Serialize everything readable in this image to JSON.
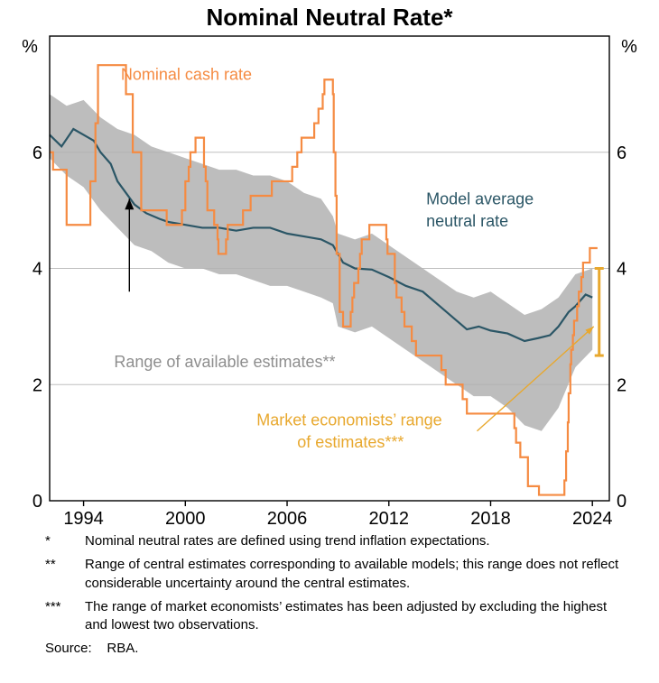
{
  "chart": {
    "type": "line-with-band",
    "title": "Nominal Neutral Rate*",
    "y_unit": "%",
    "xlim": [
      1992,
      2025
    ],
    "ylim": [
      0,
      8
    ],
    "xticks": [
      1994,
      2000,
      2006,
      2012,
      2018,
      2024
    ],
    "ygrid": [
      2,
      4,
      6
    ],
    "yticks_labels": [
      "0",
      "2",
      "4",
      "6"
    ],
    "colors": {
      "background": "#ffffff",
      "axis": "#000000",
      "grid": "#bfbfbf",
      "band": "#b1b1b1",
      "cash_rate": "#f58b42",
      "model_avg": "#2b5666",
      "arrow_black": "#000000",
      "market_range": "#e8a82e",
      "text_grey": "#8e8e8e"
    },
    "line_width_cash": 2.2,
    "line_width_model": 2.2,
    "tick_fontsize": 20,
    "title_fontsize": 26,
    "label_fontsize": 18,
    "band_upper": [
      [
        1992.0,
        7.0
      ],
      [
        1993.0,
        6.8
      ],
      [
        1994.0,
        6.9
      ],
      [
        1995.0,
        6.6
      ],
      [
        1996.0,
        6.4
      ],
      [
        1997.0,
        6.3
      ],
      [
        1998.0,
        6.1
      ],
      [
        1999.0,
        6.0
      ],
      [
        2000.0,
        5.9
      ],
      [
        2001.0,
        5.8
      ],
      [
        2002.0,
        5.7
      ],
      [
        2003.0,
        5.7
      ],
      [
        2004.0,
        5.6
      ],
      [
        2005.0,
        5.6
      ],
      [
        2006.0,
        5.5
      ],
      [
        2007.0,
        5.3
      ],
      [
        2008.0,
        5.2
      ],
      [
        2008.7,
        4.9
      ],
      [
        2009.0,
        4.6
      ],
      [
        2010.0,
        4.5
      ],
      [
        2011.0,
        4.6
      ],
      [
        2012.0,
        4.4
      ],
      [
        2013.0,
        4.2
      ],
      [
        2014.0,
        4.0
      ],
      [
        2015.0,
        3.8
      ],
      [
        2016.0,
        3.6
      ],
      [
        2017.0,
        3.5
      ],
      [
        2018.0,
        3.6
      ],
      [
        2019.0,
        3.4
      ],
      [
        2020.0,
        3.2
      ],
      [
        2021.0,
        3.3
      ],
      [
        2022.0,
        3.5
      ],
      [
        2023.0,
        3.9
      ],
      [
        2024.0,
        4.0
      ]
    ],
    "band_lower": [
      [
        1992.0,
        5.9
      ],
      [
        1993.0,
        5.6
      ],
      [
        1994.0,
        5.4
      ],
      [
        1995.0,
        5.0
      ],
      [
        1996.0,
        4.7
      ],
      [
        1997.0,
        4.4
      ],
      [
        1998.0,
        4.3
      ],
      [
        1999.0,
        4.1
      ],
      [
        2000.0,
        4.0
      ],
      [
        2001.0,
        4.0
      ],
      [
        2002.0,
        3.9
      ],
      [
        2003.0,
        3.9
      ],
      [
        2004.0,
        3.8
      ],
      [
        2005.0,
        3.7
      ],
      [
        2006.0,
        3.7
      ],
      [
        2007.0,
        3.6
      ],
      [
        2008.0,
        3.5
      ],
      [
        2008.7,
        3.4
      ],
      [
        2009.0,
        3.0
      ],
      [
        2010.0,
        2.9
      ],
      [
        2011.0,
        3.0
      ],
      [
        2012.0,
        2.8
      ],
      [
        2013.0,
        2.6
      ],
      [
        2014.0,
        2.4
      ],
      [
        2015.0,
        2.2
      ],
      [
        2016.0,
        2.0
      ],
      [
        2017.0,
        1.8
      ],
      [
        2018.0,
        1.8
      ],
      [
        2019.0,
        1.6
      ],
      [
        2020.0,
        1.3
      ],
      [
        2021.0,
        1.2
      ],
      [
        2022.0,
        1.6
      ],
      [
        2023.0,
        2.3
      ],
      [
        2024.0,
        2.6
      ]
    ],
    "model_avg": [
      [
        1992.0,
        6.3
      ],
      [
        1992.7,
        6.1
      ],
      [
        1993.4,
        6.4
      ],
      [
        1994.0,
        6.3
      ],
      [
        1994.6,
        6.2
      ],
      [
        1995.0,
        6.0
      ],
      [
        1995.6,
        5.8
      ],
      [
        1996.0,
        5.5
      ],
      [
        1996.5,
        5.3
      ],
      [
        1997.0,
        5.1
      ],
      [
        1997.7,
        4.95
      ],
      [
        1998.5,
        4.85
      ],
      [
        1999.0,
        4.8
      ],
      [
        2000.0,
        4.75
      ],
      [
        2001.0,
        4.7
      ],
      [
        2002.0,
        4.7
      ],
      [
        2003.0,
        4.65
      ],
      [
        2004.0,
        4.7
      ],
      [
        2005.0,
        4.7
      ],
      [
        2006.0,
        4.6
      ],
      [
        2007.0,
        4.55
      ],
      [
        2008.0,
        4.5
      ],
      [
        2008.7,
        4.4
      ],
      [
        2009.3,
        4.1
      ],
      [
        2010.0,
        4.0
      ],
      [
        2011.0,
        3.98
      ],
      [
        2012.0,
        3.85
      ],
      [
        2013.0,
        3.7
      ],
      [
        2014.0,
        3.6
      ],
      [
        2015.0,
        3.35
      ],
      [
        2016.0,
        3.1
      ],
      [
        2016.6,
        2.95
      ],
      [
        2017.3,
        3.0
      ],
      [
        2018.0,
        2.93
      ],
      [
        2019.0,
        2.88
      ],
      [
        2020.0,
        2.75
      ],
      [
        2020.8,
        2.8
      ],
      [
        2021.5,
        2.85
      ],
      [
        2022.0,
        3.0
      ],
      [
        2022.6,
        3.25
      ],
      [
        2023.0,
        3.35
      ],
      [
        2023.6,
        3.55
      ],
      [
        2024.0,
        3.5
      ]
    ],
    "cash_rate": [
      [
        1992.0,
        6.0
      ],
      [
        1992.2,
        6.0
      ],
      [
        1992.2,
        5.7
      ],
      [
        1993.0,
        5.7
      ],
      [
        1993.0,
        4.75
      ],
      [
        1993.8,
        4.75
      ],
      [
        1993.8,
        4.75
      ],
      [
        1994.4,
        4.75
      ],
      [
        1994.4,
        5.5
      ],
      [
        1994.7,
        5.5
      ],
      [
        1994.7,
        6.5
      ],
      [
        1994.85,
        6.5
      ],
      [
        1994.85,
        7.5
      ],
      [
        1996.5,
        7.5
      ],
      [
        1996.5,
        7.0
      ],
      [
        1996.9,
        7.0
      ],
      [
        1996.9,
        6.0
      ],
      [
        1997.4,
        6.0
      ],
      [
        1997.4,
        5.0
      ],
      [
        1998.9,
        5.0
      ],
      [
        1998.9,
        4.75
      ],
      [
        1999.8,
        4.75
      ],
      [
        1999.8,
        5.0
      ],
      [
        2000.0,
        5.0
      ],
      [
        2000.0,
        5.5
      ],
      [
        2000.2,
        5.5
      ],
      [
        2000.2,
        5.75
      ],
      [
        2000.3,
        5.75
      ],
      [
        2000.3,
        6.0
      ],
      [
        2000.6,
        6.0
      ],
      [
        2000.6,
        6.25
      ],
      [
        2001.1,
        6.25
      ],
      [
        2001.1,
        5.75
      ],
      [
        2001.2,
        5.75
      ],
      [
        2001.2,
        5.5
      ],
      [
        2001.3,
        5.5
      ],
      [
        2001.3,
        5.0
      ],
      [
        2001.7,
        5.0
      ],
      [
        2001.7,
        4.75
      ],
      [
        2001.9,
        4.75
      ],
      [
        2001.9,
        4.5
      ],
      [
        2001.95,
        4.5
      ],
      [
        2001.95,
        4.25
      ],
      [
        2002.4,
        4.25
      ],
      [
        2002.4,
        4.5
      ],
      [
        2002.5,
        4.5
      ],
      [
        2002.5,
        4.75
      ],
      [
        2003.4,
        4.75
      ],
      [
        2003.4,
        5.0
      ],
      [
        2003.85,
        5.0
      ],
      [
        2003.85,
        5.25
      ],
      [
        2005.1,
        5.25
      ],
      [
        2005.1,
        5.5
      ],
      [
        2006.3,
        5.5
      ],
      [
        2006.3,
        5.75
      ],
      [
        2006.6,
        5.75
      ],
      [
        2006.6,
        6.0
      ],
      [
        2006.85,
        6.0
      ],
      [
        2006.85,
        6.25
      ],
      [
        2007.6,
        6.25
      ],
      [
        2007.6,
        6.5
      ],
      [
        2007.85,
        6.5
      ],
      [
        2007.85,
        6.75
      ],
      [
        2008.1,
        6.75
      ],
      [
        2008.1,
        7.0
      ],
      [
        2008.2,
        7.0
      ],
      [
        2008.2,
        7.25
      ],
      [
        2008.7,
        7.25
      ],
      [
        2008.7,
        7.0
      ],
      [
        2008.75,
        7.0
      ],
      [
        2008.75,
        6.0
      ],
      [
        2008.85,
        6.0
      ],
      [
        2008.85,
        5.25
      ],
      [
        2008.92,
        5.25
      ],
      [
        2008.92,
        4.25
      ],
      [
        2009.1,
        4.25
      ],
      [
        2009.1,
        3.25
      ],
      [
        2009.3,
        3.25
      ],
      [
        2009.3,
        3.0
      ],
      [
        2009.75,
        3.0
      ],
      [
        2009.75,
        3.25
      ],
      [
        2009.85,
        3.25
      ],
      [
        2009.85,
        3.5
      ],
      [
        2009.95,
        3.5
      ],
      [
        2009.95,
        3.75
      ],
      [
        2010.2,
        3.75
      ],
      [
        2010.2,
        4.0
      ],
      [
        2010.3,
        4.0
      ],
      [
        2010.3,
        4.25
      ],
      [
        2010.4,
        4.25
      ],
      [
        2010.4,
        4.5
      ],
      [
        2010.85,
        4.5
      ],
      [
        2010.85,
        4.75
      ],
      [
        2011.85,
        4.75
      ],
      [
        2011.85,
        4.5
      ],
      [
        2011.92,
        4.5
      ],
      [
        2011.92,
        4.25
      ],
      [
        2012.35,
        4.25
      ],
      [
        2012.35,
        3.75
      ],
      [
        2012.45,
        3.75
      ],
      [
        2012.45,
        3.5
      ],
      [
        2012.75,
        3.5
      ],
      [
        2012.75,
        3.25
      ],
      [
        2012.92,
        3.25
      ],
      [
        2012.92,
        3.0
      ],
      [
        2013.35,
        3.0
      ],
      [
        2013.35,
        2.75
      ],
      [
        2013.6,
        2.75
      ],
      [
        2013.6,
        2.5
      ],
      [
        2015.1,
        2.5
      ],
      [
        2015.1,
        2.25
      ],
      [
        2015.35,
        2.25
      ],
      [
        2015.35,
        2.0
      ],
      [
        2016.35,
        2.0
      ],
      [
        2016.35,
        1.75
      ],
      [
        2016.6,
        1.75
      ],
      [
        2016.6,
        1.5
      ],
      [
        2019.4,
        1.5
      ],
      [
        2019.4,
        1.25
      ],
      [
        2019.5,
        1.25
      ],
      [
        2019.5,
        1.0
      ],
      [
        2019.75,
        1.0
      ],
      [
        2019.75,
        0.75
      ],
      [
        2020.2,
        0.75
      ],
      [
        2020.2,
        0.25
      ],
      [
        2020.85,
        0.25
      ],
      [
        2020.85,
        0.1
      ],
      [
        2022.35,
        0.1
      ],
      [
        2022.35,
        0.35
      ],
      [
        2022.45,
        0.35
      ],
      [
        2022.45,
        0.85
      ],
      [
        2022.55,
        0.85
      ],
      [
        2022.55,
        1.35
      ],
      [
        2022.6,
        1.35
      ],
      [
        2022.6,
        1.85
      ],
      [
        2022.7,
        1.85
      ],
      [
        2022.7,
        2.35
      ],
      [
        2022.75,
        2.35
      ],
      [
        2022.75,
        2.6
      ],
      [
        2022.85,
        2.6
      ],
      [
        2022.85,
        2.85
      ],
      [
        2022.92,
        2.85
      ],
      [
        2022.92,
        3.1
      ],
      [
        2023.1,
        3.1
      ],
      [
        2023.1,
        3.35
      ],
      [
        2023.2,
        3.35
      ],
      [
        2023.2,
        3.6
      ],
      [
        2023.35,
        3.6
      ],
      [
        2023.35,
        3.85
      ],
      [
        2023.45,
        3.85
      ],
      [
        2023.45,
        4.1
      ],
      [
        2023.85,
        4.1
      ],
      [
        2023.85,
        4.35
      ],
      [
        2024.3,
        4.35
      ]
    ],
    "market_range": {
      "year": 2024.4,
      "lo": 2.5,
      "hi": 4.0
    },
    "annotations": {
      "cash_rate": "Nominal cash rate",
      "model_avg_1": "Model average",
      "model_avg_2": "neutral rate",
      "range_est": "Range of available estimates**",
      "market_1": "Market economists’ range",
      "market_2": "of estimates***"
    }
  },
  "footnotes": {
    "f1_sym": "*",
    "f1_txt": "Nominal neutral rates are defined using trend inflation expectations.",
    "f2_sym": "**",
    "f2_txt": "Range of central estimates corresponding to available models; this range does not reflect considerable uncertainty around the central estimates.",
    "f3_sym": "***",
    "f3_txt": "The range of market economists’ estimates has been adjusted by excluding the highest and lowest two observations.",
    "source_label": "Source:",
    "source_value": "RBA."
  }
}
